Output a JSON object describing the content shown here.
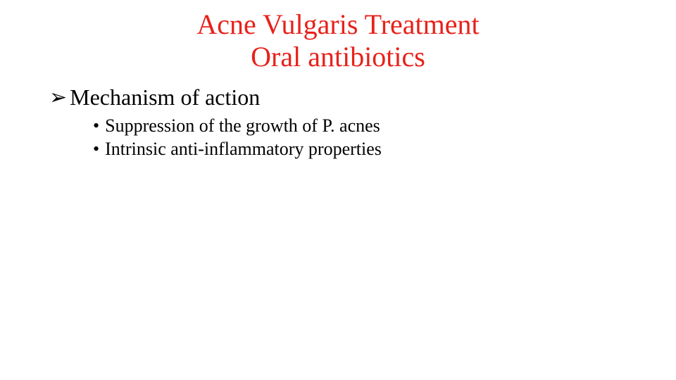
{
  "title": {
    "line1": "Acne Vulgaris Treatment",
    "line2": "Oral antibiotics",
    "color": "#e8211a",
    "fontsize": 40
  },
  "section": {
    "bullet_glyph": "➢",
    "heading": "Mechanism of action",
    "heading_fontsize": 32,
    "items": [
      "Suppression of the growth of P. acnes",
      "Intrinsic anti-inflammatory properties"
    ],
    "item_bullet": "•",
    "item_fontsize": 26
  },
  "background_color": "#ffffff"
}
